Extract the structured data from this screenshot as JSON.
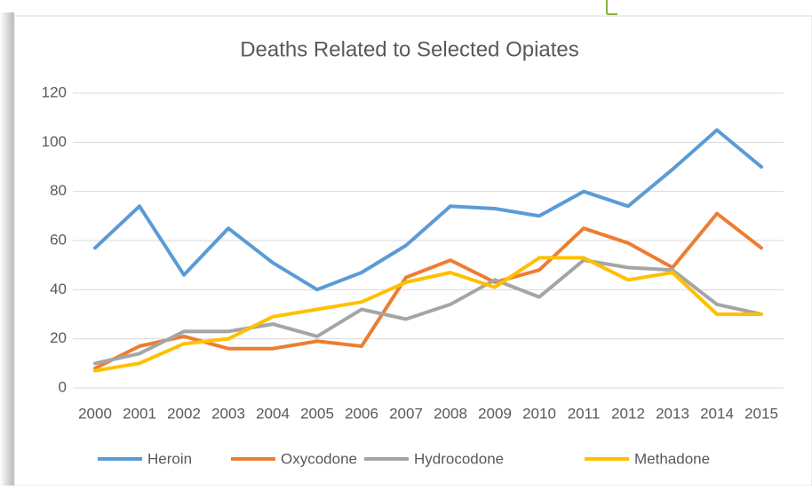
{
  "chart_data": {
    "type": "line",
    "title": "Deaths Related to Selected Opiates",
    "categories": [
      "2000",
      "2001",
      "2002",
      "2003",
      "2004",
      "2005",
      "2006",
      "2007",
      "2008",
      "2009",
      "2010",
      "2011",
      "2012",
      "2013",
      "2014",
      "2015"
    ],
    "series": [
      {
        "name": "Heroin",
        "color": "#5b9bd5",
        "values": [
          57,
          74,
          46,
          65,
          51,
          40,
          47,
          58,
          74,
          73,
          70,
          80,
          74,
          89,
          105,
          90
        ]
      },
      {
        "name": "Oxycodone",
        "color": "#ed7d31",
        "values": [
          8,
          17,
          21,
          16,
          16,
          19,
          17,
          45,
          52,
          43,
          48,
          65,
          59,
          49,
          71,
          57
        ]
      },
      {
        "name": "Hydrocodone",
        "color": "#a5a5a5",
        "values": [
          10,
          14,
          23,
          23,
          26,
          21,
          32,
          28,
          34,
          44,
          37,
          52,
          49,
          48,
          34,
          30
        ]
      },
      {
        "name": "Methadone",
        "color": "#ffc000",
        "values": [
          7,
          10,
          18,
          20,
          29,
          32,
          35,
          43,
          47,
          41,
          53,
          53,
          44,
          47,
          30,
          30
        ]
      }
    ],
    "ylim": [
      0,
      120
    ],
    "yticks": [
      0,
      20,
      40,
      60,
      80,
      100,
      120
    ],
    "grid": true,
    "legend": "bottom"
  }
}
